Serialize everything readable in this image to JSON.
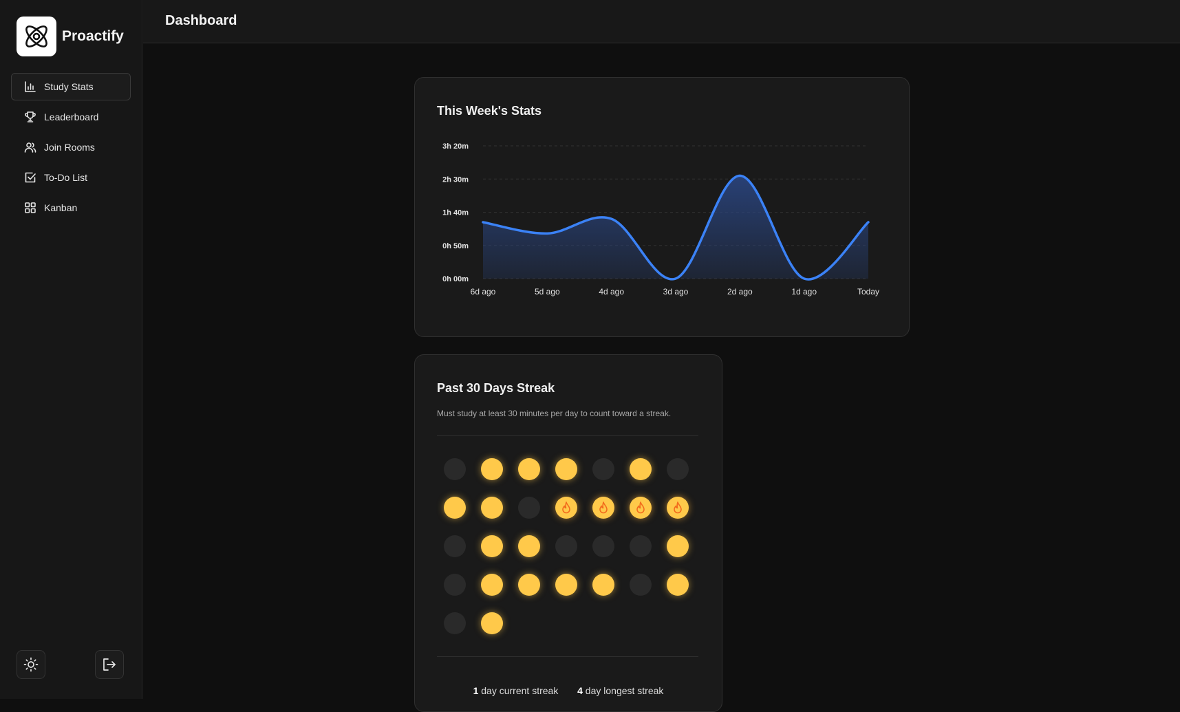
{
  "app": {
    "name": "Proactify"
  },
  "sidebar": {
    "items": [
      {
        "label": "Study Stats",
        "icon": "bar-chart-icon",
        "active": true
      },
      {
        "label": "Leaderboard",
        "icon": "trophy-icon",
        "active": false
      },
      {
        "label": "Join Rooms",
        "icon": "users-icon",
        "active": false
      },
      {
        "label": "To-Do List",
        "icon": "checkbox-icon",
        "active": false
      },
      {
        "label": "Kanban",
        "icon": "grid-icon",
        "active": false
      }
    ],
    "bottom": {
      "theme_icon": "sun-icon",
      "logout_icon": "logout-icon"
    }
  },
  "header": {
    "title": "Dashboard"
  },
  "weekly_stats": {
    "title": "This Week's Stats",
    "chart_data": {
      "type": "area",
      "categories": [
        "6d ago",
        "5d ago",
        "4d ago",
        "3d ago",
        "2d ago",
        "1d ago",
        "Today"
      ],
      "values_minutes": [
        85,
        68,
        90,
        0,
        155,
        0,
        85
      ],
      "y_ticks": [
        "3h 20m",
        "2h 30m",
        "1h 40m",
        "0h 50m",
        "0h 00m"
      ],
      "ylim_minutes": [
        0,
        200
      ],
      "grid": true,
      "colors": {
        "line": "#3b82f6",
        "fill": "#2a4580"
      }
    }
  },
  "streak": {
    "title": "Past 30 Days Streak",
    "subtitle": "Must study at least 30 minutes per day to count toward a streak.",
    "days": [
      0,
      1,
      1,
      1,
      0,
      1,
      0,
      1,
      1,
      0,
      2,
      2,
      2,
      2,
      0,
      1,
      1,
      0,
      0,
      0,
      1,
      0,
      1,
      1,
      1,
      1,
      0,
      1,
      0,
      1
    ],
    "current_streak_value": "1",
    "current_streak_label": "day current streak",
    "longest_streak_value": "4",
    "longest_streak_label": "day longest streak",
    "colors": {
      "active": "#ffc94a",
      "inactive": "#2a2a2a",
      "fire": "#f26b1d"
    }
  }
}
